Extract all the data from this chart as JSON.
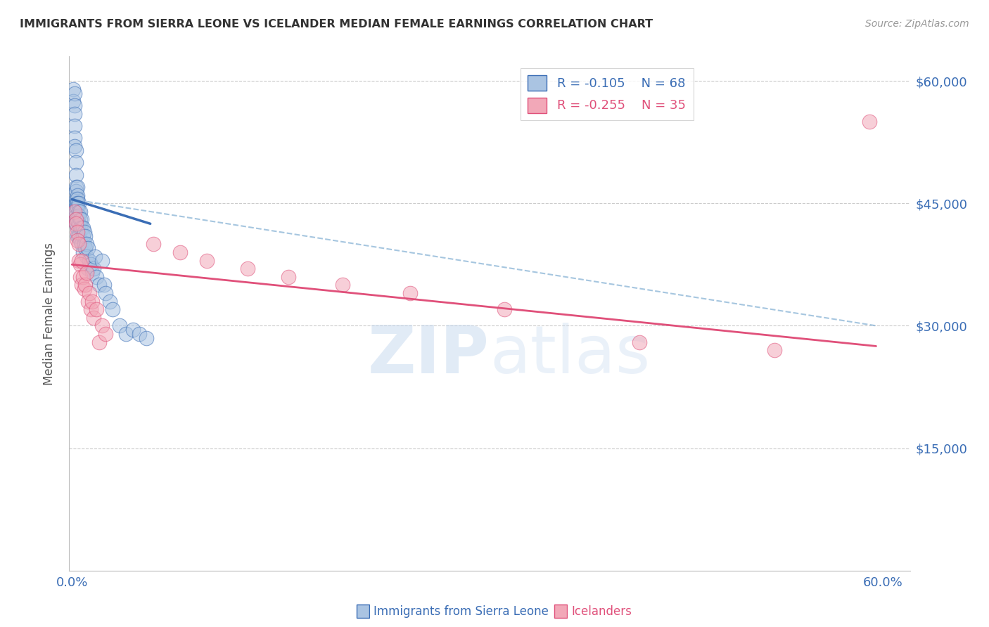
{
  "title": "IMMIGRANTS FROM SIERRA LEONE VS ICELANDER MEDIAN FEMALE EARNINGS CORRELATION CHART",
  "source": "Source: ZipAtlas.com",
  "ylabel": "Median Female Earnings",
  "yticks": [
    0,
    15000,
    30000,
    45000,
    60000
  ],
  "ytick_labels": [
    "",
    "$15,000",
    "$30,000",
    "$45,000",
    "$60,000"
  ],
  "legend_r1": "R = -0.105",
  "legend_n1": "N = 68",
  "legend_r2": "R = -0.255",
  "legend_n2": "N = 35",
  "watermark": "ZIPatlas",
  "blue_color": "#aac4e2",
  "blue_line_color": "#3a6db5",
  "pink_color": "#f2a8b8",
  "pink_line_color": "#e0507a",
  "dashed_line_color": "#90b8d8",
  "axis_label_color": "#3a6db5",
  "title_color": "#333333",
  "blue_scatter_x": [
    0.001,
    0.001,
    0.002,
    0.002,
    0.002,
    0.002,
    0.002,
    0.002,
    0.003,
    0.003,
    0.003,
    0.003,
    0.003,
    0.003,
    0.003,
    0.003,
    0.003,
    0.003,
    0.003,
    0.003,
    0.004,
    0.004,
    0.004,
    0.004,
    0.004,
    0.004,
    0.004,
    0.004,
    0.005,
    0.005,
    0.005,
    0.005,
    0.005,
    0.006,
    0.006,
    0.006,
    0.006,
    0.007,
    0.007,
    0.007,
    0.008,
    0.008,
    0.008,
    0.009,
    0.009,
    0.01,
    0.01,
    0.011,
    0.011,
    0.012,
    0.012,
    0.013,
    0.014,
    0.015,
    0.016,
    0.017,
    0.018,
    0.02,
    0.022,
    0.024,
    0.025,
    0.028,
    0.03,
    0.035,
    0.04,
    0.045,
    0.05,
    0.055
  ],
  "blue_scatter_y": [
    59000,
    57500,
    58500,
    57000,
    56000,
    54500,
    53000,
    52000,
    51500,
    50000,
    48500,
    47000,
    46500,
    45500,
    45000,
    44500,
    44000,
    43500,
    43000,
    42500,
    47000,
    46000,
    45500,
    45000,
    44500,
    43000,
    42000,
    41000,
    45000,
    44000,
    43500,
    42500,
    41000,
    44000,
    43000,
    42000,
    40500,
    43000,
    42000,
    40000,
    42000,
    41000,
    39000,
    41500,
    40000,
    41000,
    39500,
    40000,
    38500,
    39500,
    37000,
    38000,
    37500,
    36500,
    37000,
    38500,
    36000,
    35000,
    38000,
    35000,
    34000,
    33000,
    32000,
    30000,
    29000,
    29500,
    29000,
    28500
  ],
  "pink_scatter_x": [
    0.002,
    0.003,
    0.003,
    0.004,
    0.004,
    0.005,
    0.005,
    0.006,
    0.006,
    0.007,
    0.007,
    0.008,
    0.009,
    0.01,
    0.011,
    0.012,
    0.013,
    0.014,
    0.015,
    0.016,
    0.018,
    0.02,
    0.022,
    0.025,
    0.06,
    0.08,
    0.1,
    0.13,
    0.16,
    0.2,
    0.25,
    0.32,
    0.42,
    0.52,
    0.59
  ],
  "pink_scatter_y": [
    44000,
    43000,
    42500,
    41500,
    40500,
    40000,
    38000,
    37500,
    36000,
    38000,
    35000,
    36000,
    34500,
    35000,
    36500,
    33000,
    34000,
    32000,
    33000,
    31000,
    32000,
    28000,
    30000,
    29000,
    40000,
    39000,
    38000,
    37000,
    36000,
    35000,
    34000,
    32000,
    28000,
    27000,
    55000
  ],
  "blue_trend_x": [
    0.0,
    0.058
  ],
  "blue_trend_y": [
    45500,
    42500
  ],
  "pink_trend_x": [
    0.0,
    0.595
  ],
  "pink_trend_y": [
    37500,
    27500
  ],
  "dashed_trend_x": [
    0.0,
    0.595
  ],
  "dashed_trend_y": [
    45500,
    30000
  ],
  "xmin": -0.002,
  "xmax": 0.62,
  "ymin": 0,
  "ymax": 63000
}
